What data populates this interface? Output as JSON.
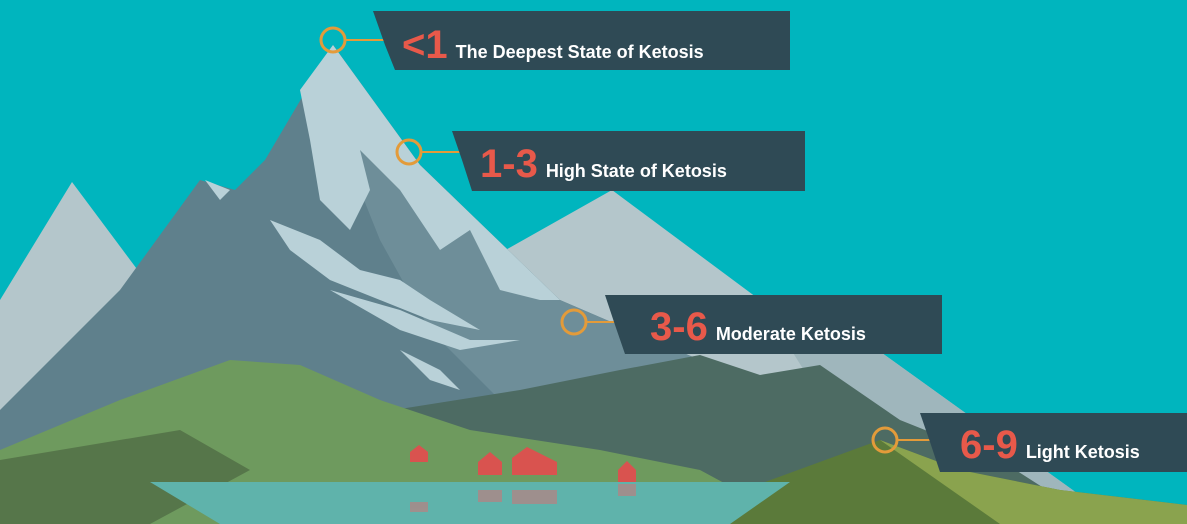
{
  "levels": [
    {
      "range": "<1",
      "text": "The Deepest State of Ketosis"
    },
    {
      "range": "1-3",
      "text": "High State of Ketosis"
    },
    {
      "range": "3-6",
      "text": "Moderate Ketosis"
    },
    {
      "range": "6-9",
      "text": "Light Ketosis"
    }
  ]
}
